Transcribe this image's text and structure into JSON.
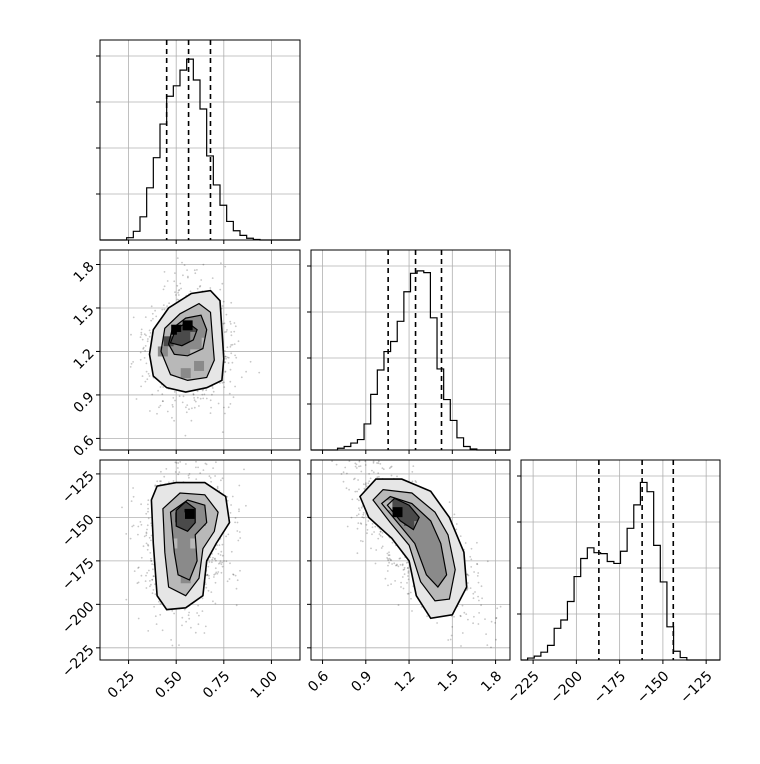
{
  "chart_data": {
    "type": "corner",
    "grid": true,
    "parameters": [
      {
        "xlim": [
          0.1,
          1.15
        ],
        "ticks": [
          0.25,
          0.5,
          0.75,
          1.0
        ],
        "tick_labels": [
          "0.25",
          "0.50",
          "0.75",
          "1.00"
        ],
        "quantiles": [
          0.45,
          0.565,
          0.68
        ]
      },
      {
        "xlim": [
          0.52,
          1.9
        ],
        "ticks": [
          0.6,
          0.9,
          1.2,
          1.5,
          1.8
        ],
        "tick_labels": [
          "0.6",
          "0.9",
          "1.2",
          "1.5",
          "1.8"
        ],
        "quantiles": [
          1.055,
          1.245,
          1.425
        ]
      },
      {
        "xlim": [
          -232,
          -117
        ],
        "ticks": [
          -225,
          -200,
          -175,
          -150,
          -125
        ],
        "tick_labels": [
          "−225",
          "−200",
          "−175",
          "−150",
          "−125"
        ],
        "quantiles": [
          -187,
          -162,
          -144
        ]
      }
    ],
    "histograms": [
      {
        "bins": [
          0.1,
          0.135,
          0.17,
          0.205,
          0.24,
          0.275,
          0.31,
          0.345,
          0.38,
          0.415,
          0.45,
          0.485,
          0.52,
          0.555,
          0.59,
          0.625,
          0.66,
          0.695,
          0.73,
          0.765,
          0.8,
          0.835,
          0.87,
          0.905,
          0.94,
          0.975,
          1.01,
          1.045,
          1.08,
          1.115,
          1.15
        ],
        "counts": [
          0,
          0,
          0,
          0,
          4,
          15,
          40,
          90,
          142,
          200,
          248,
          266,
          293,
          312,
          276,
          226,
          145,
          95,
          60,
          32,
          16,
          8,
          3,
          1,
          0,
          0,
          0,
          0,
          0,
          0
        ],
        "ylim": [
          0,
          345
        ]
      },
      {
        "bins": [
          0.52,
          0.566,
          0.612,
          0.658,
          0.704,
          0.75,
          0.796,
          0.842,
          0.888,
          0.934,
          0.98,
          1.026,
          1.072,
          1.118,
          1.164,
          1.21,
          1.256,
          1.302,
          1.348,
          1.394,
          1.44,
          1.486,
          1.532,
          1.578,
          1.624,
          1.67,
          1.716,
          1.762,
          1.808,
          1.854,
          1.9
        ],
        "counts": [
          0,
          0,
          0,
          0,
          5,
          10,
          20,
          30,
          75,
          160,
          230,
          283,
          312,
          370,
          455,
          508,
          515,
          510,
          380,
          233,
          145,
          85,
          35,
          10,
          3,
          0,
          0,
          0,
          0,
          0
        ],
        "ylim": [
          0,
          575
        ]
      },
      {
        "bins": [
          -232,
          -228.17,
          -224.33,
          -220.5,
          -216.67,
          -212.83,
          -209,
          -205.17,
          -201.33,
          -197.5,
          -193.67,
          -189.83,
          -186,
          -182.17,
          -178.33,
          -174.5,
          -170.67,
          -166.83,
          -163,
          -159.17,
          -155.33,
          -151.5,
          -147.67,
          -143.83,
          -140,
          -136.17,
          -132.33,
          -128.5,
          -124.67,
          -120.83,
          -117
        ],
        "counts": [
          0,
          4,
          8,
          16,
          30,
          65,
          82,
          120,
          171,
          208,
          230,
          220,
          218,
          202,
          198,
          223,
          270,
          318,
          364,
          345,
          235,
          160,
          68,
          18,
          5,
          0,
          0,
          0,
          0,
          0
        ],
        "ylim": [
          0,
          410
        ]
      }
    ],
    "pairs": [
      {
        "row": 1,
        "col": 0,
        "cells": [
          [
            0.5,
            1.35,
            5
          ],
          [
            0.56,
            1.38,
            5
          ],
          [
            0.53,
            1.3,
            4
          ],
          [
            0.46,
            1.27,
            4
          ],
          [
            0.6,
            1.3,
            3
          ],
          [
            0.43,
            1.2,
            3
          ],
          [
            0.6,
            1.18,
            2
          ],
          [
            0.55,
            1.05,
            3
          ],
          [
            0.62,
            1.1,
            3
          ],
          [
            0.66,
            1.26,
            2
          ]
        ],
        "contours": [
          [
            [
              0.36,
              1.18
            ],
            [
              0.38,
              1.35
            ],
            [
              0.46,
              1.5
            ],
            [
              0.58,
              1.6
            ],
            [
              0.68,
              1.62
            ],
            [
              0.73,
              1.55
            ],
            [
              0.74,
              1.35
            ],
            [
              0.75,
              1.15
            ],
            [
              0.74,
              1.0
            ],
            [
              0.66,
              0.95
            ],
            [
              0.55,
              0.92
            ],
            [
              0.45,
              0.95
            ],
            [
              0.38,
              1.03
            ]
          ],
          [
            [
              0.42,
              1.2
            ],
            [
              0.44,
              1.36
            ],
            [
              0.52,
              1.46
            ],
            [
              0.62,
              1.53
            ],
            [
              0.68,
              1.47
            ],
            [
              0.69,
              1.3
            ],
            [
              0.7,
              1.14
            ],
            [
              0.66,
              1.02
            ],
            [
              0.56,
              1.0
            ],
            [
              0.47,
              1.04
            ]
          ],
          [
            [
              0.46,
              1.25
            ],
            [
              0.48,
              1.36
            ],
            [
              0.55,
              1.43
            ],
            [
              0.63,
              1.45
            ],
            [
              0.66,
              1.35
            ],
            [
              0.64,
              1.22
            ],
            [
              0.56,
              1.17
            ],
            [
              0.49,
              1.18
            ]
          ],
          [
            [
              0.47,
              1.26
            ],
            [
              0.5,
              1.36
            ],
            [
              0.56,
              1.4
            ],
            [
              0.61,
              1.35
            ],
            [
              0.59,
              1.28
            ],
            [
              0.53,
              1.24
            ]
          ]
        ]
      },
      {
        "row": 2,
        "col": 0,
        "cells": [
          [
            0.57,
            -148,
            5
          ],
          [
            0.52,
            -150,
            4
          ],
          [
            0.63,
            -152,
            3
          ],
          [
            0.55,
            -175,
            3
          ],
          [
            0.55,
            -185,
            3
          ],
          [
            0.48,
            -165,
            2
          ],
          [
            0.6,
            -165,
            2
          ]
        ],
        "contours": [
          [
            [
              0.37,
              -140
            ],
            [
              0.38,
              -165
            ],
            [
              0.4,
              -195
            ],
            [
              0.45,
              -203
            ],
            [
              0.55,
              -202
            ],
            [
              0.64,
              -195
            ],
            [
              0.66,
              -175
            ],
            [
              0.71,
              -165
            ],
            [
              0.78,
              -153
            ],
            [
              0.76,
              -138
            ],
            [
              0.65,
              -130
            ],
            [
              0.5,
              -130
            ],
            [
              0.4,
              -132
            ]
          ],
          [
            [
              0.43,
              -145
            ],
            [
              0.44,
              -170
            ],
            [
              0.46,
              -190
            ],
            [
              0.55,
              -195
            ],
            [
              0.62,
              -185
            ],
            [
              0.64,
              -168
            ],
            [
              0.7,
              -158
            ],
            [
              0.72,
              -147
            ],
            [
              0.65,
              -137
            ],
            [
              0.52,
              -136
            ]
          ],
          [
            [
              0.47,
              -147
            ],
            [
              0.49,
              -170
            ],
            [
              0.51,
              -183
            ],
            [
              0.57,
              -186
            ],
            [
              0.61,
              -175
            ],
            [
              0.6,
              -160
            ],
            [
              0.66,
              -153
            ],
            [
              0.65,
              -143
            ],
            [
              0.56,
              -140
            ]
          ],
          [
            [
              0.5,
              -146
            ],
            [
              0.5,
              -155
            ],
            [
              0.56,
              -158
            ],
            [
              0.6,
              -153
            ],
            [
              0.6,
              -145
            ],
            [
              0.55,
              -141
            ]
          ]
        ]
      },
      {
        "row": 2,
        "col": 1,
        "cells": [
          [
            1.12,
            -147,
            5
          ],
          [
            1.2,
            -152,
            4
          ],
          [
            1.27,
            -155,
            3
          ],
          [
            1.32,
            -165,
            3
          ],
          [
            1.38,
            -175,
            3
          ],
          [
            1.05,
            -143,
            2
          ]
        ],
        "contours": [
          [
            [
              0.86,
              -138
            ],
            [
              0.92,
              -150
            ],
            [
              1.08,
              -162
            ],
            [
              1.2,
              -175
            ],
            [
              1.25,
              -195
            ],
            [
              1.35,
              -208
            ],
            [
              1.5,
              -206
            ],
            [
              1.6,
              -190
            ],
            [
              1.58,
              -170
            ],
            [
              1.48,
              -150
            ],
            [
              1.35,
              -135
            ],
            [
              1.15,
              -128
            ],
            [
              0.97,
              -128
            ]
          ],
          [
            [
              0.95,
              -140
            ],
            [
              1.07,
              -153
            ],
            [
              1.2,
              -166
            ],
            [
              1.28,
              -187
            ],
            [
              1.38,
              -198
            ],
            [
              1.48,
              -197
            ],
            [
              1.52,
              -180
            ],
            [
              1.47,
              -160
            ],
            [
              1.38,
              -147
            ],
            [
              1.22,
              -136
            ],
            [
              1.02,
              -134
            ]
          ],
          [
            [
              1.01,
              -142
            ],
            [
              1.13,
              -154
            ],
            [
              1.24,
              -165
            ],
            [
              1.32,
              -183
            ],
            [
              1.4,
              -190
            ],
            [
              1.46,
              -183
            ],
            [
              1.42,
              -165
            ],
            [
              1.35,
              -152
            ],
            [
              1.22,
              -142
            ],
            [
              1.07,
              -138
            ]
          ],
          [
            [
              1.05,
              -143
            ],
            [
              1.14,
              -152
            ],
            [
              1.23,
              -157
            ],
            [
              1.27,
              -150
            ],
            [
              1.2,
              -143
            ],
            [
              1.1,
              -139
            ]
          ]
        ]
      }
    ]
  }
}
